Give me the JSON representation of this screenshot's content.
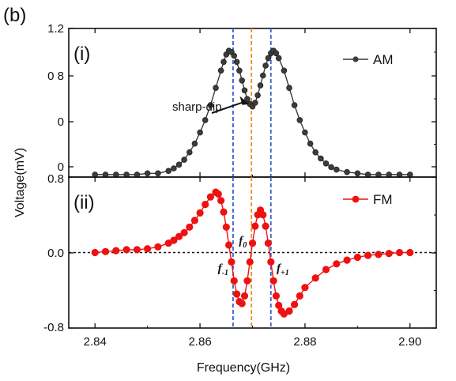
{
  "figure_label": "(b)",
  "shared_x_label": "Frequency(GHz)",
  "shared_y_label": "Voltage(mV)",
  "chart_data": [
    {
      "type": "scatter",
      "panel_label": "(i)",
      "x_ticks": [
        "2.84",
        "2.86",
        "2.88",
        "2.90"
      ],
      "y_tick_labels": [
        "1.2",
        "0 8",
        "0",
        "0"
      ],
      "xlim": [
        2.835,
        2.905
      ],
      "ylim": [
        0.0,
        1.2
      ],
      "legend": "top-right",
      "series": [
        {
          "name": "AM",
          "color": "#3c3c3c",
          "x": [
            2.84,
            2.842,
            2.844,
            2.846,
            2.848,
            2.85,
            2.852,
            2.854,
            2.855,
            2.856,
            2.857,
            2.858,
            2.859,
            2.86,
            2.861,
            2.862,
            2.863,
            2.864,
            2.8645,
            2.865,
            2.8655,
            2.866,
            2.8665,
            2.867,
            2.8675,
            2.868,
            2.8685,
            2.869,
            2.8695,
            2.87,
            2.8705,
            2.871,
            2.8715,
            2.872,
            2.8725,
            2.873,
            2.8735,
            2.874,
            2.8745,
            2.875,
            2.876,
            2.877,
            2.878,
            2.879,
            2.88,
            2.881,
            2.882,
            2.883,
            2.884,
            2.885,
            2.886,
            2.888,
            2.89,
            2.892,
            2.894,
            2.896,
            2.898,
            2.9
          ],
          "y": [
            0.02,
            0.02,
            0.02,
            0.02,
            0.02,
            0.03,
            0.03,
            0.05,
            0.07,
            0.1,
            0.14,
            0.2,
            0.27,
            0.36,
            0.46,
            0.58,
            0.72,
            0.86,
            0.93,
            0.99,
            1.02,
            1.01,
            0.98,
            0.93,
            0.86,
            0.78,
            0.7,
            0.63,
            0.59,
            0.57,
            0.6,
            0.66,
            0.74,
            0.82,
            0.9,
            0.96,
            1.0,
            1.02,
            1.0,
            0.96,
            0.86,
            0.72,
            0.58,
            0.46,
            0.36,
            0.27,
            0.2,
            0.15,
            0.11,
            0.08,
            0.06,
            0.04,
            0.03,
            0.02,
            0.02,
            0.02,
            0.02,
            0.02
          ]
        }
      ],
      "vlines": [
        {
          "x": 2.8663,
          "color": "#2f5fc9"
        },
        {
          "x": 2.8698,
          "color": "#e8921f"
        },
        {
          "x": 2.8735,
          "color": "#2f5fc9"
        }
      ],
      "annotations": [
        {
          "text": "sharp-dip",
          "x": 2.87,
          "y": 0.57
        }
      ]
    },
    {
      "type": "scatter",
      "panel_label": "(ii)",
      "x_ticks": [
        "2.84",
        "2.86",
        "2.88",
        "2.90"
      ],
      "y_tick_labels": [
        "0.8",
        "0.0",
        "-0.8"
      ],
      "xlim": [
        2.835,
        2.905
      ],
      "ylim": [
        -0.8,
        0.8
      ],
      "legend": "top-right",
      "zero_line": 0.0,
      "series": [
        {
          "name": "FM",
          "color": "#ee1111",
          "x": [
            2.84,
            2.842,
            2.844,
            2.846,
            2.848,
            2.85,
            2.852,
            2.854,
            2.855,
            2.856,
            2.857,
            2.858,
            2.859,
            2.86,
            2.861,
            2.862,
            2.863,
            2.8635,
            2.864,
            2.8645,
            2.865,
            2.8655,
            2.866,
            2.8665,
            2.867,
            2.8675,
            2.868,
            2.8685,
            2.869,
            2.8695,
            2.87,
            2.8705,
            2.871,
            2.8715,
            2.872,
            2.8725,
            2.873,
            2.8735,
            2.874,
            2.8745,
            2.875,
            2.8755,
            2.876,
            2.877,
            2.878,
            2.879,
            2.88,
            2.882,
            2.884,
            2.886,
            2.888,
            2.89,
            2.892,
            2.894,
            2.896,
            2.898,
            2.9
          ],
          "y": [
            0.0,
            0.01,
            0.02,
            0.03,
            0.03,
            0.04,
            0.06,
            0.1,
            0.13,
            0.17,
            0.21,
            0.27,
            0.34,
            0.42,
            0.51,
            0.59,
            0.64,
            0.62,
            0.55,
            0.43,
            0.27,
            0.08,
            -0.1,
            -0.3,
            -0.44,
            -0.52,
            -0.54,
            -0.46,
            -0.3,
            -0.1,
            0.1,
            0.28,
            0.4,
            0.45,
            0.4,
            0.28,
            0.1,
            -0.1,
            -0.3,
            -0.46,
            -0.56,
            -0.62,
            -0.65,
            -0.62,
            -0.55,
            -0.46,
            -0.37,
            -0.27,
            -0.18,
            -0.12,
            -0.08,
            -0.05,
            -0.03,
            -0.02,
            -0.01,
            0.0,
            0.0
          ]
        }
      ],
      "vlines": [
        {
          "x": 2.8663,
          "color": "#2f5fc9"
        },
        {
          "x": 2.8698,
          "color": "#e8921f"
        },
        {
          "x": 2.8735,
          "color": "#2f5fc9"
        }
      ],
      "annotations": [
        {
          "text": "f",
          "sub": "0",
          "x": 2.8683,
          "y": 0.12
        },
        {
          "text": "f",
          "sub": "-1",
          "x": 2.8643,
          "y": -0.17
        },
        {
          "text": "f",
          "sub": "+1",
          "x": 2.8755,
          "y": -0.17
        }
      ]
    }
  ]
}
